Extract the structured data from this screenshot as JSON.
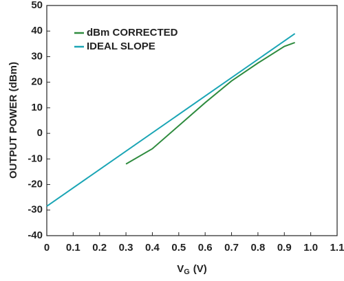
{
  "chart_data": {
    "type": "line",
    "x_label": [
      "V",
      "G",
      "(V)"
    ],
    "y_label": "OUTPUT POWER (dBm)",
    "xlim": [
      0,
      1.1
    ],
    "ylim": [
      -40,
      50
    ],
    "xticks": [
      0,
      0.1,
      0.2,
      0.3,
      0.4,
      0.5,
      0.6,
      0.7,
      0.8,
      0.9,
      {
        "value": 1,
        "label": "1.0"
      },
      1.1
    ],
    "yticks": [
      -40,
      -30,
      -20,
      -10,
      0,
      10,
      20,
      30,
      40,
      50
    ],
    "legend": "upper left",
    "series": [
      {
        "name": "dBm CORRECTED",
        "color": "#2e8b3e",
        "x": [
          0.3,
          0.4,
          0.5,
          0.6,
          0.7,
          0.8,
          0.9,
          0.94
        ],
        "values": [
          -12,
          -6,
          3,
          12,
          20.5,
          27.5,
          34,
          35.5
        ]
      },
      {
        "name": "IDEAL SLOPE",
        "color": "#1aa5b5",
        "x": [
          0,
          0.94
        ],
        "values": [
          -28.5,
          39
        ]
      }
    ]
  }
}
